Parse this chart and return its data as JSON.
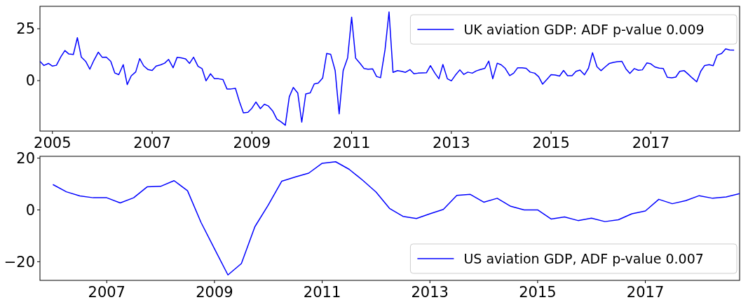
{
  "chart_data": [
    {
      "type": "line",
      "x": [
        2004.75,
        2004.83,
        2004.92,
        2005,
        2005.08,
        2005.17,
        2005.25,
        2005.33,
        2005.42,
        2005.5,
        2005.58,
        2005.67,
        2005.75,
        2005.83,
        2005.92,
        2006,
        2006.08,
        2006.17,
        2006.25,
        2006.33,
        2006.42,
        2006.5,
        2006.58,
        2006.67,
        2006.75,
        2006.83,
        2006.92,
        2007,
        2007.08,
        2007.17,
        2007.25,
        2007.33,
        2007.42,
        2007.5,
        2007.58,
        2007.67,
        2007.75,
        2007.83,
        2007.92,
        2008,
        2008.08,
        2008.17,
        2008.25,
        2008.33,
        2008.42,
        2008.5,
        2008.58,
        2008.67,
        2008.75,
        2008.83,
        2008.92,
        2009,
        2009.08,
        2009.17,
        2009.25,
        2009.33,
        2009.42,
        2009.5,
        2009.58,
        2009.67,
        2009.75,
        2009.83,
        2009.92,
        2010,
        2010.08,
        2010.17,
        2010.25,
        2010.33,
        2010.42,
        2010.5,
        2010.58,
        2010.67,
        2010.75,
        2010.83,
        2010.92,
        2011,
        2011.08,
        2011.17,
        2011.25,
        2011.33,
        2011.42,
        2011.5,
        2011.58,
        2011.67,
        2011.75,
        2011.83,
        2011.92,
        2012,
        2012.08,
        2012.17,
        2012.25,
        2012.33,
        2012.42,
        2012.5,
        2012.58,
        2012.67,
        2012.75,
        2012.83,
        2012.92,
        2013,
        2013.08,
        2013.17,
        2013.25,
        2013.33,
        2013.42,
        2013.5,
        2013.58,
        2013.67,
        2013.75,
        2013.83,
        2013.92,
        2014,
        2014.08,
        2014.17,
        2014.25,
        2014.33,
        2014.42,
        2014.5,
        2014.58,
        2014.67,
        2014.75,
        2014.83,
        2014.92,
        2015,
        2015.08,
        2015.17,
        2015.25,
        2015.33,
        2015.42,
        2015.5,
        2015.58,
        2015.67,
        2015.75,
        2015.83,
        2015.92,
        2016,
        2016.08,
        2016.17,
        2016.25,
        2016.33,
        2016.42,
        2016.5,
        2016.58,
        2016.67,
        2016.75,
        2016.83,
        2016.92,
        2017,
        2017.08,
        2017.17,
        2017.25,
        2017.33,
        2017.42,
        2017.5,
        2017.58,
        2017.67,
        2017.75,
        2017.83,
        2017.92,
        2018,
        2018.08,
        2018.17,
        2018.25,
        2018.33,
        2018.42,
        2018.5,
        2018.58,
        2018.67
      ],
      "series": [
        {
          "name": "UK aviation GDP: ADF p-value 0.009",
          "color": "#0000ff",
          "values": [
            9.3,
            7.3,
            8.3,
            7.0,
            7.4,
            11.5,
            14.5,
            12.8,
            12.6,
            20.7,
            11.3,
            9.2,
            5.5,
            9.7,
            13.7,
            11.2,
            11.3,
            9.3,
            3.7,
            2.9,
            7.7,
            -1.9,
            2.3,
            4.2,
            10.6,
            7.1,
            5.3,
            4.9,
            7.0,
            7.6,
            8.4,
            10.2,
            6.2,
            11.2,
            11.0,
            10.5,
            8.3,
            11.3,
            6.9,
            5.8,
            -0.1,
            3.3,
            0.9,
            0.9,
            0.5,
            -4.0,
            -4.0,
            -3.7,
            -10.1,
            -15.5,
            -15.3,
            -13.3,
            -10.3,
            -13.5,
            -11.4,
            -12.2,
            -14.7,
            -18.5,
            -19.8,
            -21.5,
            -7.8,
            -3.3,
            -6.0,
            -20.0,
            -6.4,
            -5.9,
            -1.6,
            -1.2,
            1.3,
            13.1,
            12.7,
            4.8,
            -16.0,
            4.8,
            11.0,
            30.6,
            10.8,
            8.3,
            5.8,
            5.5,
            5.7,
            2.0,
            1.4,
            14.9,
            33.1,
            4.0,
            4.8,
            4.5,
            4.0,
            5.3,
            3.3,
            3.6,
            3.7,
            3.8,
            7.2,
            3.6,
            0.9,
            7.8,
            0.9,
            -0.1,
            2.6,
            5.2,
            3.0,
            4.1,
            3.6,
            4.7,
            5.3,
            5.9,
            9.4,
            0.9,
            8.4,
            7.6,
            5.9,
            2.4,
            3.6,
            6.2,
            6.2,
            5.9,
            4.1,
            3.6,
            1.9,
            -1.7,
            0.7,
            2.9,
            2.7,
            2.2,
            4.9,
            2.4,
            2.4,
            4.5,
            5.1,
            2.8,
            6.0,
            13.4,
            6.7,
            4.8,
            6.5,
            8.3,
            8.8,
            9.1,
            9.3,
            5.7,
            3.5,
            5.8,
            5.0,
            5.2,
            8.5,
            8.1,
            6.6,
            6.0,
            5.8,
            1.6,
            1.4,
            1.7,
            4.5,
            4.8,
            3.1,
            1.3,
            -0.6,
            4.5,
            7.3,
            7.7,
            7.2,
            12.3,
            13.1,
            15.3,
            14.8,
            14.7
          ]
        }
      ],
      "xlim": [
        2004.75,
        2018.78
      ],
      "xticks": [
        2005,
        2007,
        2009,
        2011,
        2013,
        2015,
        2017
      ],
      "ylim": [
        -24.3,
        35.8
      ],
      "yticks": [
        0,
        25
      ],
      "legend": "top right"
    },
    {
      "type": "line",
      "x": [
        2006,
        2006.25,
        2006.5,
        2006.75,
        2007,
        2007.25,
        2007.5,
        2007.75,
        2008,
        2008.25,
        2008.5,
        2008.75,
        2009,
        2009.25,
        2009.5,
        2009.75,
        2010,
        2010.25,
        2010.5,
        2010.75,
        2011,
        2011.25,
        2011.5,
        2011.75,
        2012,
        2012.25,
        2012.5,
        2012.75,
        2013,
        2013.25,
        2013.5,
        2013.75,
        2014,
        2014.25,
        2014.5,
        2014.75,
        2015,
        2015.25,
        2015.5,
        2015.75,
        2016,
        2016.25,
        2016.5,
        2016.75,
        2017,
        2017.25,
        2017.5,
        2017.75,
        2018,
        2018.25,
        2018.5,
        2018.75
      ],
      "series": [
        {
          "name": "US aviation GDP, ADF p-value 0.007",
          "color": "#0000ff",
          "values": [
            9.8,
            7.0,
            5.4,
            4.7,
            4.7,
            2.7,
            4.7,
            8.9,
            9.1,
            11.3,
            7.4,
            -4.8,
            -15.0,
            -25.1,
            -20.7,
            -6.5,
            1.9,
            11.1,
            12.7,
            14.2,
            18.0,
            18.6,
            15.7,
            11.5,
            6.9,
            0.6,
            -2.5,
            -3.3,
            -1.5,
            0.2,
            5.6,
            6.0,
            3.0,
            4.5,
            1.4,
            0.0,
            0.0,
            -3.5,
            -2.7,
            -4.1,
            -3.2,
            -4.5,
            -3.8,
            -1.5,
            -0.4,
            4.1,
            2.4,
            3.6,
            5.5,
            4.5,
            5.0,
            6.3
          ]
        }
      ],
      "xlim": [
        2005.76,
        2018.75
      ],
      "xticks": [
        2007,
        2009,
        2011,
        2013,
        2015,
        2017
      ],
      "ylim": [
        -27.2,
        20.7
      ],
      "yticks": [
        -20,
        0,
        20
      ],
      "legend": "bottom right"
    }
  ]
}
